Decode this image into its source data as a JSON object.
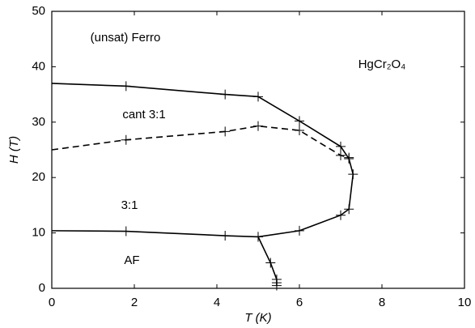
{
  "chart_data": {
    "type": "line",
    "xlabel": "T (K)",
    "ylabel": "H (T)",
    "xlim": [
      0,
      10
    ],
    "xticks": [
      0,
      2,
      4,
      6,
      8,
      10
    ],
    "ylim": [
      0,
      50
    ],
    "yticks": [
      0,
      10,
      20,
      30,
      40,
      50
    ],
    "grid": false,
    "series": [
      {
        "color": "#000000",
        "dash": false,
        "x": [
          0,
          1.8,
          4.2,
          5,
          6,
          7,
          7.2,
          7.3,
          7.2,
          7,
          6,
          5,
          4.2,
          1.8,
          0
        ],
        "values": [
          37,
          36.5,
          35,
          34.6,
          30.2,
          25.6,
          23.4,
          20.6,
          14.3,
          13.2,
          10.4,
          9.3,
          9.5,
          10.3,
          10.4
        ]
      },
      {
        "color": "#000000",
        "dash": true,
        "x": [
          0,
          1.8,
          4.2,
          5,
          6,
          7,
          7.2
        ],
        "values": [
          25,
          26.8,
          28.3,
          29.3,
          28.5,
          24,
          23.6
        ]
      },
      {
        "color": "#000000",
        "dash": false,
        "x": [
          5,
          5.3,
          5.45,
          5.45,
          5.45
        ],
        "values": [
          9.3,
          4.6,
          1.6,
          1,
          0.5
        ]
      }
    ],
    "annotations": [
      "(unsat) Ferro",
      "HgCr₂O₄",
      "cant 3:1",
      "3:1",
      "AF"
    ]
  }
}
